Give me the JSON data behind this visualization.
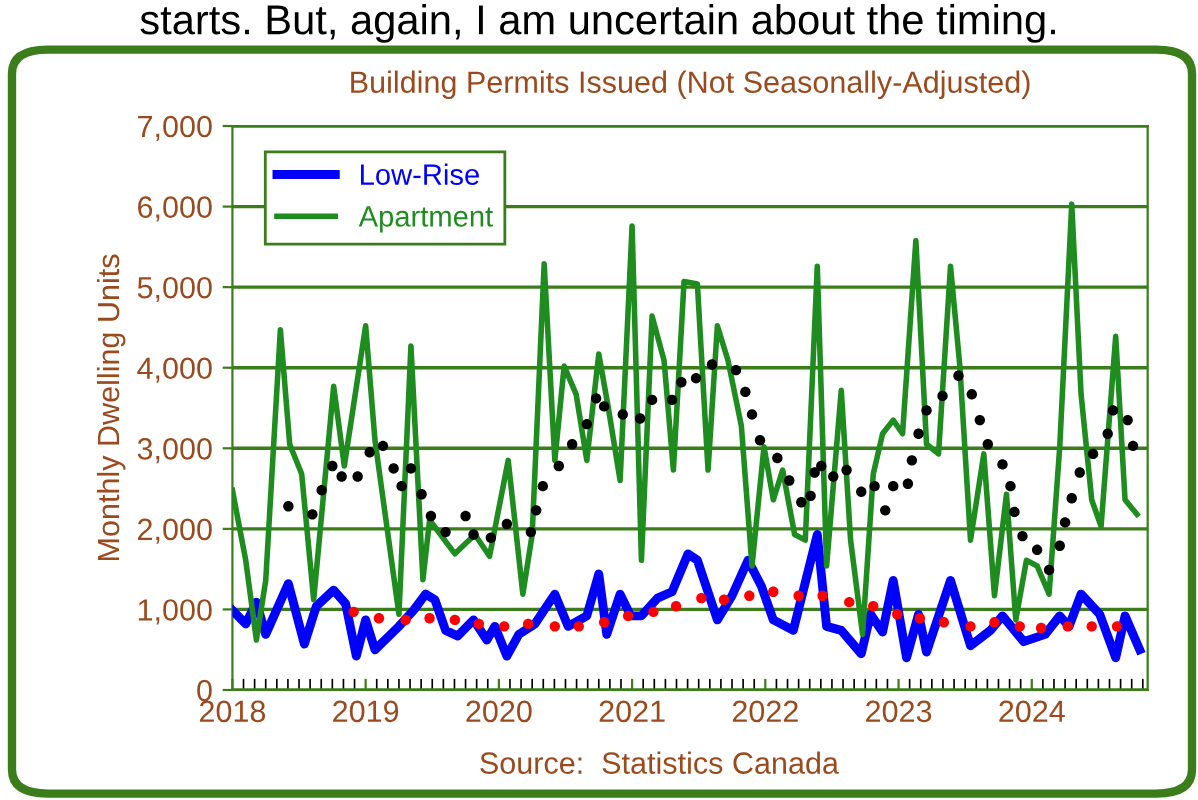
{
  "chart_data": {
    "type": "line",
    "title": "Building Permits Issued (Not Seasonally-Adjusted)",
    "ylabel": "Monthly Dwelling Units",
    "annotations": [
      "starts. But, again, I am uncertain about the timing.",
      "Source:  Statistics Canada"
    ],
    "xlim": [
      2018,
      2024.87
    ],
    "xticks": [
      2018,
      2019,
      2020,
      2021,
      2022,
      2023,
      2024
    ],
    "ylim": [
      0,
      7000
    ],
    "yticks": [
      {
        "value": 0,
        "label": "0"
      },
      {
        "value": 1000,
        "label": "1,000"
      },
      {
        "value": 2000,
        "label": "2,000"
      },
      {
        "value": 3000,
        "label": "3,000"
      },
      {
        "value": 4000,
        "label": "4,000"
      },
      {
        "value": 5000,
        "label": "5,000"
      },
      {
        "value": 6000,
        "label": "6,000"
      },
      {
        "value": 7000,
        "label": "7,000"
      }
    ],
    "grid": "y",
    "legend": "top left",
    "series": [
      {
        "name": "Low-Rise",
        "color": "#0000ff",
        "x": [
          2018.0,
          2018.1,
          2018.18,
          2018.25,
          2018.42,
          2018.54,
          2018.63,
          2018.76,
          2018.85,
          2018.93,
          2019.0,
          2019.07,
          2019.25,
          2019.36,
          2019.45,
          2019.52,
          2019.6,
          2019.69,
          2019.81,
          2019.91,
          2019.97,
          2020.06,
          2020.15,
          2020.27,
          2020.42,
          2020.52,
          2020.66,
          2020.75,
          2020.81,
          2020.91,
          2020.99,
          2021.07,
          2021.19,
          2021.3,
          2021.42,
          2021.49,
          2021.64,
          2021.75,
          2021.87,
          2021.97,
          2022.06,
          2022.21,
          2022.39,
          2022.46,
          2022.57,
          2022.72,
          2022.79,
          2022.88,
          2022.96,
          2023.06,
          2023.15,
          2023.21,
          2023.39,
          2023.54,
          2023.69,
          2023.78,
          2023.94,
          2024.1,
          2024.21,
          2024.28,
          2024.37,
          2024.51,
          2024.63,
          2024.7,
          2024.81
        ],
        "values": [
          990,
          820,
          1090,
          690,
          1320,
          570,
          1040,
          1240,
          1070,
          420,
          870,
          500,
          790,
          990,
          1190,
          1120,
          740,
          670,
          870,
          620,
          790,
          420,
          690,
          820,
          1190,
          790,
          920,
          1440,
          690,
          1190,
          920,
          920,
          1140,
          1220,
          1690,
          1610,
          870,
          1170,
          1610,
          1290,
          870,
          740,
          1930,
          790,
          740,
          450,
          940,
          720,
          1360,
          400,
          940,
          470,
          1360,
          550,
          740,
          920,
          600,
          690,
          920,
          790,
          1190,
          940,
          400,
          920,
          500
        ]
      },
      {
        "name": "Apartment",
        "color": "#1e8c1e",
        "x": [
          2018.0,
          2018.1,
          2018.18,
          2018.25,
          2018.36,
          2018.43,
          2018.52,
          2018.61,
          2018.76,
          2018.84,
          2019.0,
          2019.07,
          2019.25,
          2019.34,
          2019.43,
          2019.48,
          2019.67,
          2019.82,
          2019.93,
          2020.07,
          2020.18,
          2020.25,
          2020.34,
          2020.42,
          2020.49,
          2020.58,
          2020.66,
          2020.75,
          2020.82,
          2020.91,
          2021.0,
          2021.07,
          2021.15,
          2021.24,
          2021.31,
          2021.39,
          2021.49,
          2021.57,
          2021.64,
          2021.72,
          2021.82,
          2021.9,
          2021.99,
          2022.06,
          2022.13,
          2022.22,
          2022.3,
          2022.39,
          2022.46,
          2022.57,
          2022.64,
          2022.73,
          2022.81,
          2022.88,
          2022.96,
          2023.03,
          2023.13,
          2023.21,
          2023.3,
          2023.39,
          2023.46,
          2023.54,
          2023.64,
          2023.72,
          2023.81,
          2023.88,
          2023.96,
          2024.04,
          2024.13,
          2024.21,
          2024.3,
          2024.37,
          2024.45,
          2024.52,
          2024.63,
          2024.7,
          2024.79
        ],
        "values": [
          2480,
          1610,
          620,
          1360,
          4470,
          3050,
          2680,
          1120,
          3770,
          2780,
          4520,
          3100,
          940,
          4270,
          1370,
          2110,
          1690,
          1930,
          1660,
          2850,
          1190,
          1930,
          5290,
          2850,
          4020,
          3670,
          2850,
          4170,
          3520,
          2600,
          5760,
          1610,
          4640,
          4090,
          2730,
          5070,
          5040,
          2730,
          4520,
          4090,
          3280,
          1540,
          3020,
          2360,
          2730,
          1930,
          1860,
          5260,
          1540,
          3720,
          1860,
          690,
          2680,
          3180,
          3350,
          3180,
          5580,
          3050,
          2930,
          5260,
          4020,
          1860,
          2930,
          1170,
          2430,
          870,
          1610,
          1540,
          1190,
          3020,
          6030,
          3670,
          2360,
          2030,
          4390,
          2360,
          2180
        ]
      },
      {
        "type": "scatter",
        "color": "#ff0000",
        "x": [
          2018.91,
          2019.1,
          2019.3,
          2019.48,
          2019.67,
          2019.85,
          2020.04,
          2020.22,
          2020.42,
          2020.6,
          2020.79,
          2020.97,
          2021.16,
          2021.33,
          2021.52,
          2021.69,
          2021.88,
          2022.06,
          2022.25,
          2022.43,
          2022.63,
          2022.81,
          2022.99,
          2023.16,
          2023.34,
          2023.54,
          2023.72,
          2023.91,
          2024.07,
          2024.27,
          2024.45,
          2024.64
        ],
        "values": [
          970,
          890,
          870,
          890,
          870,
          820,
          790,
          820,
          790,
          790,
          840,
          920,
          970,
          1040,
          1140,
          1120,
          1170,
          1220,
          1170,
          1170,
          1090,
          1040,
          940,
          890,
          840,
          790,
          840,
          790,
          770,
          790,
          790,
          790
        ]
      },
      {
        "type": "scatter",
        "color": "#000000",
        "x": [
          2018.42,
          2018.6,
          2018.67,
          2018.75,
          2018.82,
          2018.94,
          2019.03,
          2019.13,
          2019.21,
          2019.27,
          2019.34,
          2019.42,
          2019.49,
          2019.6,
          2019.75,
          2019.81,
          2019.94,
          2020.06,
          2020.24,
          2020.28,
          2020.33,
          2020.45,
          2020.55,
          2020.66,
          2020.73,
          2020.79,
          2020.93,
          2021.06,
          2021.15,
          2021.3,
          2021.37,
          2021.48,
          2021.6,
          2021.78,
          2021.85,
          2021.9,
          2021.96,
          2022.09,
          2022.18,
          2022.27,
          2022.34,
          2022.37,
          2022.42,
          2022.51,
          2022.61,
          2022.72,
          2022.82,
          2022.9,
          2022.96,
          2023.07,
          2023.1,
          2023.15,
          2023.21,
          2023.33,
          2023.45,
          2023.55,
          2023.61,
          2023.67,
          2023.78,
          2023.84,
          2023.87,
          2023.93,
          2024.04,
          2024.13,
          2024.21,
          2024.25,
          2024.3,
          2024.36,
          2024.46,
          2024.57,
          2024.61,
          2024.72,
          2024.76
        ],
        "values": [
          2280,
          2180,
          2480,
          2780,
          2650,
          2650,
          2950,
          3030,
          2750,
          2530,
          2750,
          2430,
          2160,
          1960,
          2160,
          1930,
          1890,
          2060,
          1960,
          2230,
          2530,
          2780,
          3050,
          3300,
          3620,
          3520,
          3420,
          3370,
          3600,
          3600,
          3820,
          3870,
          4040,
          3970,
          3700,
          3420,
          3100,
          2880,
          2600,
          2330,
          2410,
          2700,
          2780,
          2650,
          2730,
          2460,
          2530,
          2230,
          2530,
          2560,
          2850,
          3180,
          3470,
          3650,
          3900,
          3670,
          3350,
          3050,
          2800,
          2530,
          2210,
          1910,
          1740,
          1490,
          1790,
          2080,
          2380,
          2700,
          2930,
          3180,
          3470,
          3350,
          3030
        ]
      }
    ]
  }
}
